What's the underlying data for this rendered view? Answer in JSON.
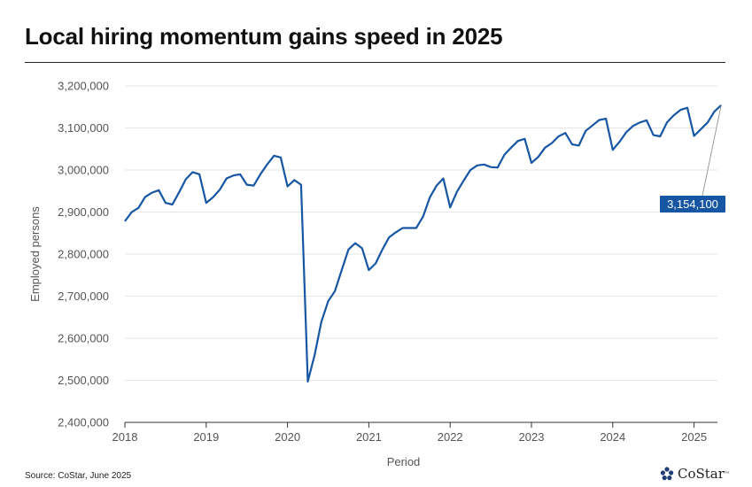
{
  "title": "Local hiring momentum gains speed in 2025",
  "source": "Source: CoStar, June 2025",
  "brand": {
    "name": "CoStar",
    "mark": "™",
    "icon": "costar-star-logo-icon"
  },
  "colors": {
    "line": "#1656a3",
    "label_bg": "#1656a3",
    "grid": "#e6e6e6"
  },
  "chart_data": {
    "type": "line",
    "title": "Local hiring momentum gains speed in 2025",
    "xlabel": "Period",
    "ylabel": "Employed persons",
    "ylim": [
      2400000,
      3200000
    ],
    "y_ticks": [
      "2,400,000",
      "2,500,000",
      "2,600,000",
      "2,700,000",
      "2,800,000",
      "2,900,000",
      "3,000,000",
      "3,100,000",
      "3,200,000"
    ],
    "x_ticks": [
      "2018",
      "2019",
      "2020",
      "2021",
      "2022",
      "2023",
      "2024",
      "2025"
    ],
    "grid": "horizontal",
    "annotation": {
      "label": "3,154,100",
      "value": 3154100,
      "date": "2025-05"
    },
    "x": [
      "2018-01",
      "2018-02",
      "2018-03",
      "2018-04",
      "2018-05",
      "2018-06",
      "2018-07",
      "2018-08",
      "2018-09",
      "2018-10",
      "2018-11",
      "2018-12",
      "2019-01",
      "2019-02",
      "2019-03",
      "2019-04",
      "2019-05",
      "2019-06",
      "2019-07",
      "2019-08",
      "2019-09",
      "2019-10",
      "2019-11",
      "2019-12",
      "2020-01",
      "2020-02",
      "2020-03",
      "2020-04",
      "2020-05",
      "2020-06",
      "2020-07",
      "2020-08",
      "2020-09",
      "2020-10",
      "2020-11",
      "2020-12",
      "2021-01",
      "2021-02",
      "2021-03",
      "2021-04",
      "2021-05",
      "2021-06",
      "2021-07",
      "2021-08",
      "2021-09",
      "2021-10",
      "2021-11",
      "2021-12",
      "2022-01",
      "2022-02",
      "2022-03",
      "2022-04",
      "2022-05",
      "2022-06",
      "2022-07",
      "2022-08",
      "2022-09",
      "2022-10",
      "2022-11",
      "2022-12",
      "2023-01",
      "2023-02",
      "2023-03",
      "2023-04",
      "2023-05",
      "2023-06",
      "2023-07",
      "2023-08",
      "2023-09",
      "2023-10",
      "2023-11",
      "2023-12",
      "2024-01",
      "2024-02",
      "2024-03",
      "2024-04",
      "2024-05",
      "2024-06",
      "2024-07",
      "2024-08",
      "2024-09",
      "2024-10",
      "2024-11",
      "2024-12",
      "2025-01",
      "2025-02",
      "2025-03",
      "2025-04",
      "2025-05"
    ],
    "series": [
      {
        "values": [
          2878000,
          2900000,
          2910000,
          2936000,
          2946000,
          2952000,
          2922000,
          2918000,
          2947000,
          2978000,
          2995000,
          2990000,
          2922000,
          2935000,
          2953000,
          2980000,
          2987000,
          2990000,
          2965000,
          2963000,
          2990000,
          3013000,
          3034000,
          3030000,
          2961000,
          2976000,
          2965000,
          2497000,
          2560000,
          2639000,
          2688000,
          2712000,
          2762000,
          2811000,
          2826000,
          2814000,
          2762000,
          2778000,
          2811000,
          2840000,
          2852000,
          2862000,
          2862000,
          2862000,
          2889000,
          2935000,
          2963000,
          2980000,
          2911000,
          2948000,
          2975000,
          3000000,
          3011000,
          3013000,
          3007000,
          3006000,
          3036000,
          3053000,
          3069000,
          3074000,
          3017000,
          3031000,
          3053000,
          3064000,
          3080000,
          3088000,
          3061000,
          3058000,
          3093000,
          3106000,
          3119000,
          3122000,
          3048000,
          3067000,
          3090000,
          3105000,
          3113000,
          3118000,
          3083000,
          3080000,
          3113000,
          3130000,
          3143000,
          3148000,
          3081000,
          3097000,
          3113000,
          3139000,
          3154100
        ]
      }
    ]
  }
}
